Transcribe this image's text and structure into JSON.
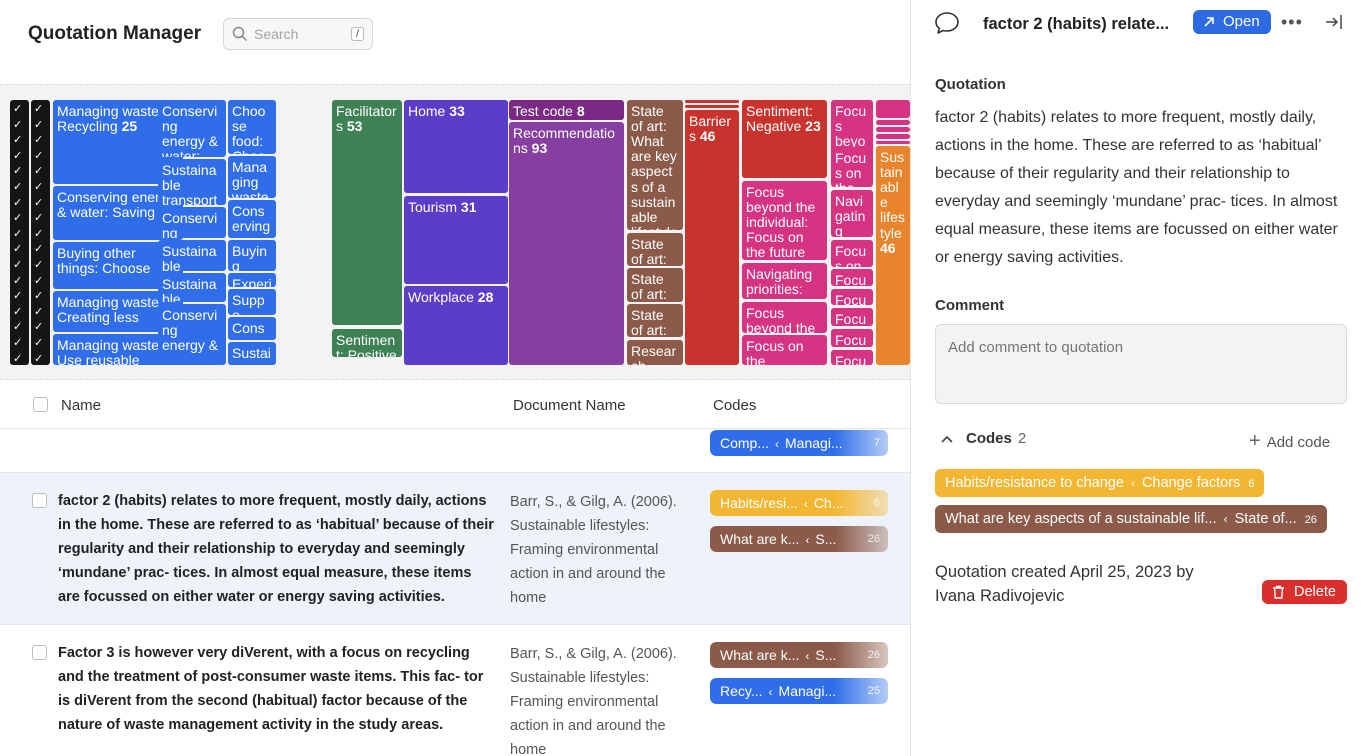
{
  "app": {
    "title": "Quotation Manager"
  },
  "search": {
    "placeholder": "Search",
    "shortcut": "/"
  },
  "treemap": [
    {
      "label": "Managing waste: Recycling",
      "count": "25",
      "color": "#2f6ee8"
    },
    {
      "label": "Conserving energy & water: Saving",
      "count": "",
      "color": "#2f6ee8"
    },
    {
      "label": "Buying other things: Choose",
      "count": "",
      "color": "#2f6ee8"
    },
    {
      "label": "Managing waste: Creating less",
      "count": "",
      "color": "#2f6ee8"
    },
    {
      "label": "Managing waste: Use reusable",
      "count": "",
      "color": "#2f6ee8"
    },
    {
      "label": "Conserving energy & water:",
      "count": "",
      "color": "#2f6ee8"
    },
    {
      "label": "Sustainable transport options:",
      "count": "",
      "color": "#2f6ee8"
    },
    {
      "label": "Conserving energy & water:",
      "count": "",
      "color": "#2f6ee8"
    },
    {
      "label": "Sustainable transport",
      "count": "",
      "color": "#2f6ee8"
    },
    {
      "label": "Sustainable transport",
      "count": "",
      "color": "#2f6ee8"
    },
    {
      "label": "Conserving energy &",
      "count": "",
      "color": "#2f6ee8"
    },
    {
      "label": "Choose food: Choose",
      "count": "",
      "color": "#2f6ee8"
    },
    {
      "label": "Managing waste: C",
      "count": "",
      "color": "#2f6ee8"
    },
    {
      "label": "Conserving energy &",
      "count": "",
      "color": "#2f6ee8"
    },
    {
      "label": "Buying other",
      "count": "",
      "color": "#2f6ee8"
    },
    {
      "label": "Experi",
      "count": "",
      "color": "#2f6ee8"
    },
    {
      "label": "Suppo",
      "count": "",
      "color": "#2f6ee8"
    },
    {
      "label": "Conse",
      "count": "",
      "color": "#2f6ee8"
    },
    {
      "label": "Sustai",
      "count": "",
      "color": "#2f6ee8"
    },
    {
      "label": "Facilitators",
      "count": "53",
      "color": "#3d8155"
    },
    {
      "label": "Sentiment: Positive",
      "count": "",
      "color": "#3d8155"
    },
    {
      "label": "Home",
      "count": "33",
      "color": "#5b3ec8"
    },
    {
      "label": "Tourism",
      "count": "31",
      "color": "#5b3ec8"
    },
    {
      "label": "Workplace",
      "count": "28",
      "color": "#5b3ec8"
    },
    {
      "label": "Test code",
      "count": "8",
      "color": "#7a2a84"
    },
    {
      "label": "Recommendations",
      "count": "93",
      "color": "#863fa0"
    },
    {
      "label": "State of art: What are key aspects of a sustainable lifestyle?",
      "count": "26",
      "color": "#8b5a48"
    },
    {
      "label": "State of art:",
      "count": "",
      "color": "#8b5a48"
    },
    {
      "label": "State of art:",
      "count": "",
      "color": "#8b5a48"
    },
    {
      "label": "State of art:",
      "count": "",
      "color": "#8b5a48"
    },
    {
      "label": "Research",
      "count": "",
      "color": "#8b5a48"
    },
    {
      "label": "Barriers",
      "count": "46",
      "color": "#c8332d"
    },
    {
      "label": "Sentiment: Negative",
      "count": "23",
      "color": "#c8332d"
    },
    {
      "label": "Focus beyond the individual: Focus on the future",
      "count": "",
      "color": "#d63383"
    },
    {
      "label": "Navigating priorities: Balancing",
      "count": "",
      "color": "#d63383"
    },
    {
      "label": "Focus beyond the",
      "count": "",
      "color": "#d63383"
    },
    {
      "label": "Focus on the",
      "count": "",
      "color": "#d63383"
    },
    {
      "label": "Focus beyond the",
      "count": "",
      "color": "#d63383"
    },
    {
      "label": "Focus on the",
      "count": "",
      "color": "#d63383"
    },
    {
      "label": "Navigating priorities: Trade",
      "count": "",
      "color": "#d63383"
    },
    {
      "label": "Focus on",
      "count": "",
      "color": "#d63383"
    },
    {
      "label": "Focus",
      "count": "",
      "color": "#d63383"
    },
    {
      "label": "Focus",
      "count": "",
      "color": "#d63383"
    },
    {
      "label": "Focus",
      "count": "",
      "color": "#d63383"
    },
    {
      "label": "Focus",
      "count": "",
      "color": "#d63383"
    },
    {
      "label": "Focus",
      "count": "",
      "color": "#d63383"
    },
    {
      "label": "Sustainable lifestyle",
      "count": "46",
      "color": "#e8842b"
    }
  ],
  "table": {
    "headers": {
      "name": "Name",
      "document": "Document Name",
      "codes": "Codes"
    },
    "partial_row": {
      "chip": {
        "code": "Comp...",
        "parent": "Managi...",
        "count": "7",
        "color": "#2f6ee8"
      }
    },
    "rows": [
      {
        "text": "factor 2 (habits) relates to more frequent, mostly daily, actions in the home. These are referred to as ‘habitual’ because of their regularity and their relationship to everyday and seemingly ‘mundane’ prac- tices. In almost equal measure, these items are focussed on either water or energy saving activities.",
        "document": "Barr, S., & Gilg, A. (2006). Sustainable lifestyles: Framing environmental action in and around the home",
        "codes": [
          {
            "code": "Habits/resi...",
            "parent": "Ch...",
            "count": "6",
            "color": "#f2b632"
          },
          {
            "code": "What are k...",
            "parent": "S...",
            "count": "26",
            "color": "#8b5a48"
          }
        ]
      },
      {
        "text": "Factor 3 is however very diVerent, with a focus on recycling and the treatment of post-consumer waste items. This fac- tor is diVerent from the second (habitual) factor because of the nature of waste management activity in the study areas.",
        "document": "Barr, S., & Gilg, A. (2006). Sustainable lifestyles: Framing environmental action in and around the home",
        "codes": [
          {
            "code": "What are k...",
            "parent": "S...",
            "count": "26",
            "color": "#8b5a48"
          },
          {
            "code": "Recy...",
            "parent": "Managi...",
            "count": "25",
            "color": "#2f6ee8"
          }
        ]
      }
    ]
  },
  "panel": {
    "title": "factor 2 (habits) relate...",
    "open_label": "Open",
    "quotation_label": "Quotation",
    "quotation_text": "factor 2 (habits) relates to more frequent, mostly daily, actions in the home. These are referred to as ‘habitual’ because of their regularity and their relationship to everyday and seemingly ‘mundane’ prac- tices. In almost equal measure, these items are focussed on either water or energy saving activities.",
    "comment_label": "Comment",
    "comment_placeholder": "Add comment to quotation",
    "codes_label": "Codes",
    "codes_count": "2",
    "add_code_label": "Add code",
    "codes": [
      {
        "code": "Habits/resistance to change",
        "parent": "Change factors",
        "count": "6",
        "color": "#f2b632"
      },
      {
        "code": "What are key aspects of a sustainable lif...",
        "parent": "State of...",
        "count": "26",
        "color": "#8b5a48"
      }
    ],
    "created_text": "Quotation created April 25, 2023 by Ivana Radivojevic",
    "delete_label": "Delete"
  }
}
